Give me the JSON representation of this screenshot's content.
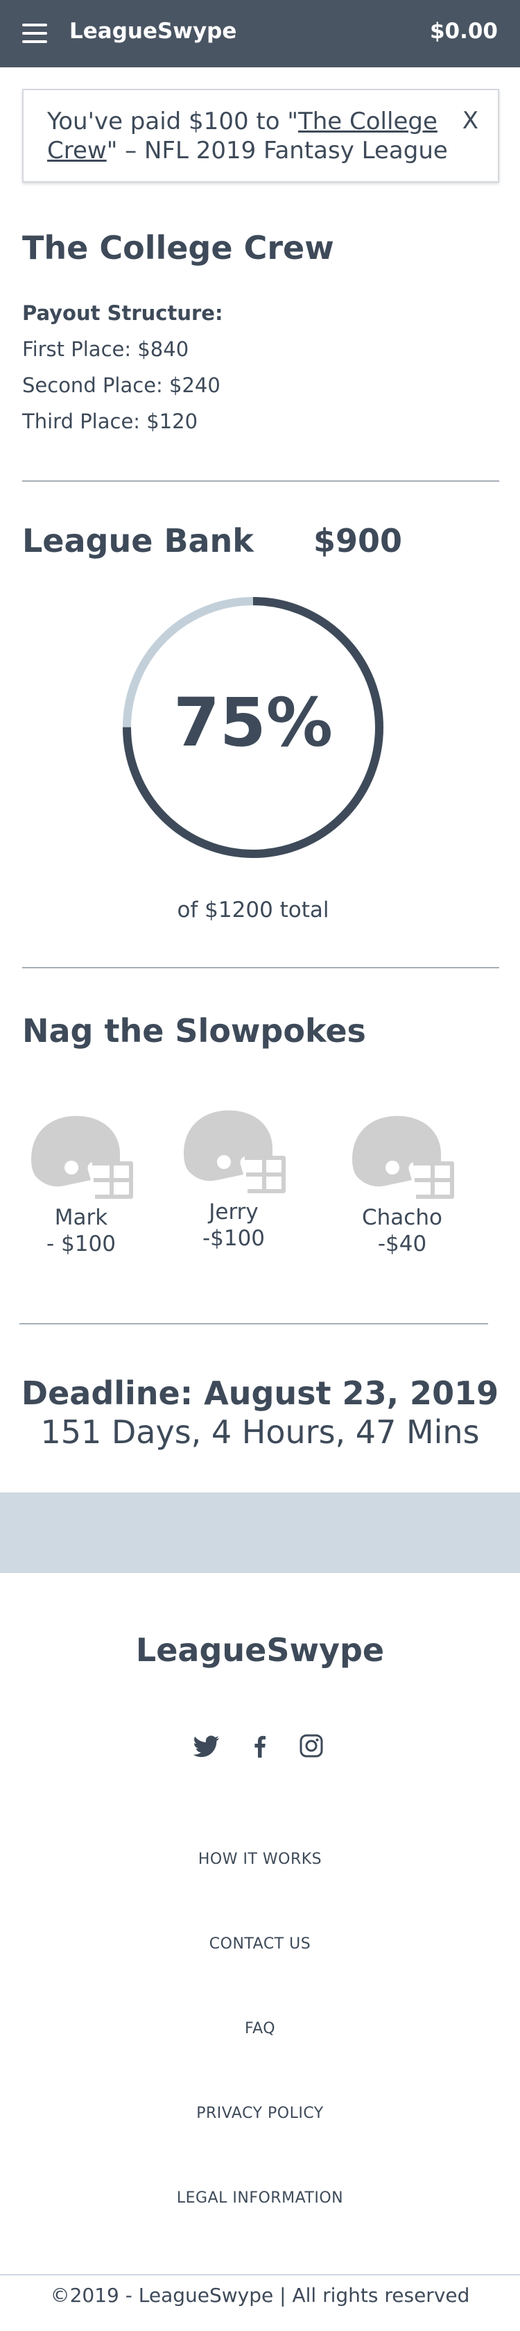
{
  "header": {
    "brand": "LeagueSwype",
    "balance": "$0.00"
  },
  "notice": {
    "prefix": "You've paid $100 to \"",
    "link": "The College Crew",
    "suffix": "\" – NFL 2019 Fantasy League",
    "close": "X"
  },
  "league": {
    "title": "The College Crew",
    "payout_heading": "Payout Structure:",
    "payouts": [
      "First Place: $840",
      "Second Place: $240",
      "Third Place: $120"
    ]
  },
  "bank": {
    "label": "League Bank",
    "amount": "$900",
    "percent_label": "75%",
    "percent": 0.75,
    "total_label": "of $1200 total",
    "track_color": "#c3d0da",
    "fill_color": "#3e4a59"
  },
  "nag": {
    "title": "Nag the Slowpokes",
    "players": [
      {
        "name": "Mark",
        "due": "- $100"
      },
      {
        "name": "Jerry",
        "due": "-$100"
      },
      {
        "name": "Chacho",
        "due": "-$40"
      }
    ],
    "helmet_icon": "football-helmet-icon",
    "helmet_color": "#cfcfcf"
  },
  "deadline": {
    "title": "Deadline: August 23, 2019",
    "countdown": "151 Days, 4 Hours, 47 Mins"
  },
  "footer": {
    "brand": "LeagueSwype",
    "social": [
      "twitter-icon",
      "facebook-icon",
      "instagram-icon"
    ],
    "links": [
      "HOW IT WORKS",
      "CONTACT US",
      "FAQ",
      "PRIVACY POLICY",
      "LEGAL INFORMATION"
    ],
    "copyright": "©2019 - LeagueSwype | All rights reserved"
  }
}
